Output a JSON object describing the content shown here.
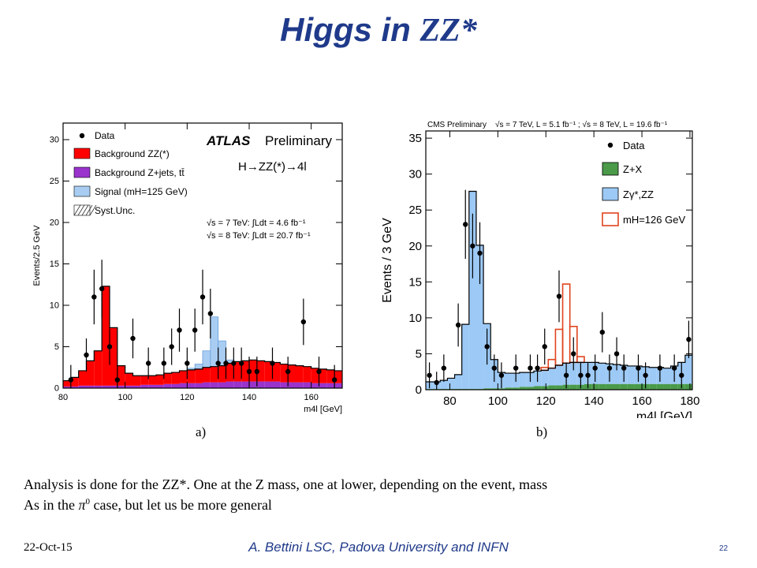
{
  "slide": {
    "title_prefix": "Higgs in ",
    "title_zz": "ZZ*",
    "line1": "Analysis is done for the ZZ*. One at the Z mass, one at lower, depending on the event, mass",
    "line2_a": "As in the ",
    "line2_pi": "π",
    "line2_sup": "0",
    "line2_b": " case, but let us be more general",
    "footer_date": "22-Oct-15",
    "footer_author": "A. Bettini LSC, Padova University and INFN",
    "footer_page": "22"
  },
  "chart_data": [
    {
      "type": "bar",
      "caption": "a)",
      "ylabel": "Events/2.5 GeV",
      "xlabel": "m4l [GeV]",
      "xlim": [
        80,
        170
      ],
      "ylim": [
        0,
        32
      ],
      "xticks": [
        80,
        100,
        120,
        140,
        160
      ],
      "yticks": [
        0,
        5,
        10,
        15,
        20,
        25,
        30
      ],
      "colors": {
        "zz": "#ff0000",
        "zjets": "#9933cc",
        "signal": "#a9cdf2",
        "data": "#000000"
      },
      "legend": {
        "position": "top-left",
        "entries": [
          "Data",
          "Background ZZ(*)",
          "Background Z+jets, tt̄",
          "Signal (mH=125 GeV)",
          "Syst.Unc."
        ]
      },
      "annotations": {
        "experiment": "ATLAS",
        "experiment_status": "Preliminary",
        "process": "H→ZZ(*)→4l",
        "lumi1": "√s = 7 TeV: ∫Ldt = 4.6 fb⁻¹",
        "lumi2": "√s = 8 TeV: ∫Ldt = 20.7 fb⁻¹"
      },
      "bin_width": 2.5,
      "bin_start": 80,
      "bkg_zz": [
        0.7,
        1.1,
        1.8,
        3.0,
        4.2,
        12.0,
        7.0,
        2.4,
        1.5,
        1.2,
        1.1,
        1.1,
        1.2,
        1.3,
        1.4,
        1.5,
        1.6,
        1.7,
        1.8,
        1.9,
        2.0,
        2.2,
        2.4,
        2.5,
        2.6,
        2.5,
        2.4,
        2.3,
        2.2,
        2.1,
        2.0,
        1.9,
        1.8,
        1.7,
        1.6,
        1.5
      ],
      "bkg_zjets": [
        0.2,
        0.2,
        0.3,
        0.3,
        0.3,
        0.3,
        0.3,
        0.3,
        0.3,
        0.3,
        0.4,
        0.4,
        0.4,
        0.5,
        0.5,
        0.6,
        0.6,
        0.6,
        0.7,
        0.7,
        0.7,
        0.8,
        0.8,
        0.8,
        0.8,
        0.8,
        0.8,
        0.8,
        0.7,
        0.7,
        0.7,
        0.7,
        0.6,
        0.6,
        0.6,
        0.6
      ],
      "signal": [
        0,
        0,
        0,
        0,
        0,
        0,
        0,
        0,
        0,
        0,
        0,
        0,
        0,
        0,
        0,
        0,
        0.2,
        0.6,
        2.0,
        6.0,
        3.0,
        0.4,
        0,
        0,
        0,
        0,
        0,
        0,
        0,
        0,
        0,
        0,
        0,
        0,
        0,
        0
      ],
      "points": [
        {
          "x": 82.5,
          "y": 1,
          "e": 1.8
        },
        {
          "x": 87.5,
          "y": 4,
          "e": 2.0
        },
        {
          "x": 90,
          "y": 11,
          "e": 3.3
        },
        {
          "x": 92.5,
          "y": 12,
          "e": 3.5
        },
        {
          "x": 95,
          "y": 5,
          "e": 2.2
        },
        {
          "x": 97.5,
          "y": 1,
          "e": 1.8
        },
        {
          "x": 102.5,
          "y": 6,
          "e": 2.4
        },
        {
          "x": 107.5,
          "y": 3,
          "e": 1.9
        },
        {
          "x": 112.5,
          "y": 3,
          "e": 1.9
        },
        {
          "x": 115,
          "y": 5,
          "e": 2.2
        },
        {
          "x": 117.5,
          "y": 7,
          "e": 2.6
        },
        {
          "x": 120,
          "y": 3,
          "e": 1.9
        },
        {
          "x": 122.5,
          "y": 7,
          "e": 2.6
        },
        {
          "x": 125,
          "y": 11,
          "e": 3.3
        },
        {
          "x": 127.5,
          "y": 9,
          "e": 3.0
        },
        {
          "x": 130,
          "y": 3,
          "e": 1.9
        },
        {
          "x": 132.5,
          "y": 3,
          "e": 1.9
        },
        {
          "x": 135,
          "y": 3,
          "e": 1.9
        },
        {
          "x": 137.5,
          "y": 3,
          "e": 1.9
        },
        {
          "x": 140,
          "y": 2,
          "e": 1.8
        },
        {
          "x": 142.5,
          "y": 2,
          "e": 1.8
        },
        {
          "x": 147.5,
          "y": 3,
          "e": 1.9
        },
        {
          "x": 152.5,
          "y": 2,
          "e": 1.8
        },
        {
          "x": 157.5,
          "y": 8,
          "e": 2.8
        },
        {
          "x": 162.5,
          "y": 2,
          "e": 1.8
        },
        {
          "x": 167.5,
          "y": 1,
          "e": 1.8
        }
      ]
    },
    {
      "type": "bar",
      "caption": "b)",
      "ylabel": "Events / 3 GeV",
      "xlabel": "m4l [GeV]",
      "xlim": [
        70,
        181
      ],
      "ylim": [
        0,
        36
      ],
      "xticks": [
        80,
        100,
        120,
        140,
        160,
        180
      ],
      "yticks": [
        0,
        5,
        10,
        15,
        20,
        25,
        30,
        35
      ],
      "colors": {
        "zx": "#4a9a4a",
        "zz": "#9cc9f5",
        "signal": "#e0441e",
        "data": "#000000"
      },
      "legend": {
        "position": "top-right",
        "entries": [
          "Data",
          "Z+X",
          "Zγ*,ZZ",
          "mH=126 GeV"
        ]
      },
      "annotations": {
        "header": "CMS Preliminary",
        "lumi": "√s = 7 TeV, L = 5.1 fb⁻¹ ; √s = 8 TeV, L = 19.6 fb⁻¹"
      },
      "bin_width": 3,
      "bin_start": 70,
      "bkg_zx": [
        0.1,
        0.1,
        0.1,
        0.1,
        0.1,
        0.1,
        0.1,
        0.1,
        0.2,
        0.2,
        0.2,
        0.3,
        0.3,
        0.4,
        0.4,
        0.5,
        0.5,
        0.6,
        0.6,
        0.7,
        0.7,
        0.7,
        0.8,
        0.8,
        0.8,
        0.8,
        0.8,
        0.8,
        0.8,
        0.8,
        0.8,
        0.8,
        0.8,
        0.8,
        0.8,
        0.8,
        0.8
      ],
      "bkg_zz": [
        1.0,
        1.0,
        1.2,
        1.5,
        2.0,
        9.0,
        27.5,
        20.0,
        9.0,
        4.0,
        2.2,
        2.0,
        2.0,
        2.0,
        2.0,
        2.1,
        2.2,
        2.4,
        2.8,
        3.0,
        3.1,
        3.1,
        3.0,
        3.0,
        2.9,
        2.8,
        2.7,
        2.6,
        2.5,
        2.5,
        2.4,
        2.3,
        2.3,
        2.2,
        2.5,
        3.0,
        4.0
      ],
      "signal": [
        0,
        0,
        0,
        0,
        0,
        0,
        0,
        0,
        0,
        0,
        0,
        0,
        0,
        0,
        0,
        0,
        0.4,
        1.2,
        5.0,
        11.0,
        5.0,
        0.8,
        0,
        0,
        0,
        0,
        0,
        0,
        0,
        0,
        0,
        0,
        0,
        0,
        0,
        0,
        0
      ],
      "points": [
        {
          "x": 71.5,
          "y": 2,
          "e": 1.8
        },
        {
          "x": 74.5,
          "y": 1,
          "e": 1.5
        },
        {
          "x": 77.5,
          "y": 3,
          "e": 1.9
        },
        {
          "x": 83.5,
          "y": 9,
          "e": 3.0
        },
        {
          "x": 86.5,
          "y": 23,
          "e": 4.8
        },
        {
          "x": 89.5,
          "y": 20,
          "e": 4.5
        },
        {
          "x": 92.5,
          "y": 19,
          "e": 4.3
        },
        {
          "x": 95.5,
          "y": 6,
          "e": 2.5
        },
        {
          "x": 98.5,
          "y": 3,
          "e": 1.9
        },
        {
          "x": 101.5,
          "y": 2,
          "e": 1.8
        },
        {
          "x": 107.5,
          "y": 3,
          "e": 1.9
        },
        {
          "x": 113.5,
          "y": 3,
          "e": 1.9
        },
        {
          "x": 116.5,
          "y": 3,
          "e": 1.9
        },
        {
          "x": 119.5,
          "y": 6,
          "e": 2.5
        },
        {
          "x": 125.5,
          "y": 13,
          "e": 3.6
        },
        {
          "x": 128.5,
          "y": 2,
          "e": 1.8
        },
        {
          "x": 131.5,
          "y": 5,
          "e": 2.3
        },
        {
          "x": 134.5,
          "y": 2,
          "e": 1.8
        },
        {
          "x": 137.5,
          "y": 2,
          "e": 1.8
        },
        {
          "x": 140.5,
          "y": 3,
          "e": 1.9
        },
        {
          "x": 143.5,
          "y": 8,
          "e": 2.8
        },
        {
          "x": 146.5,
          "y": 3,
          "e": 1.9
        },
        {
          "x": 149.5,
          "y": 5,
          "e": 2.3
        },
        {
          "x": 152.5,
          "y": 3,
          "e": 1.9
        },
        {
          "x": 158.5,
          "y": 3,
          "e": 1.9
        },
        {
          "x": 161.5,
          "y": 2,
          "e": 1.8
        },
        {
          "x": 167.5,
          "y": 3,
          "e": 1.9
        },
        {
          "x": 173.5,
          "y": 3,
          "e": 1.9
        },
        {
          "x": 176.5,
          "y": 2,
          "e": 1.8
        },
        {
          "x": 179.5,
          "y": 7,
          "e": 2.6
        }
      ]
    }
  ]
}
